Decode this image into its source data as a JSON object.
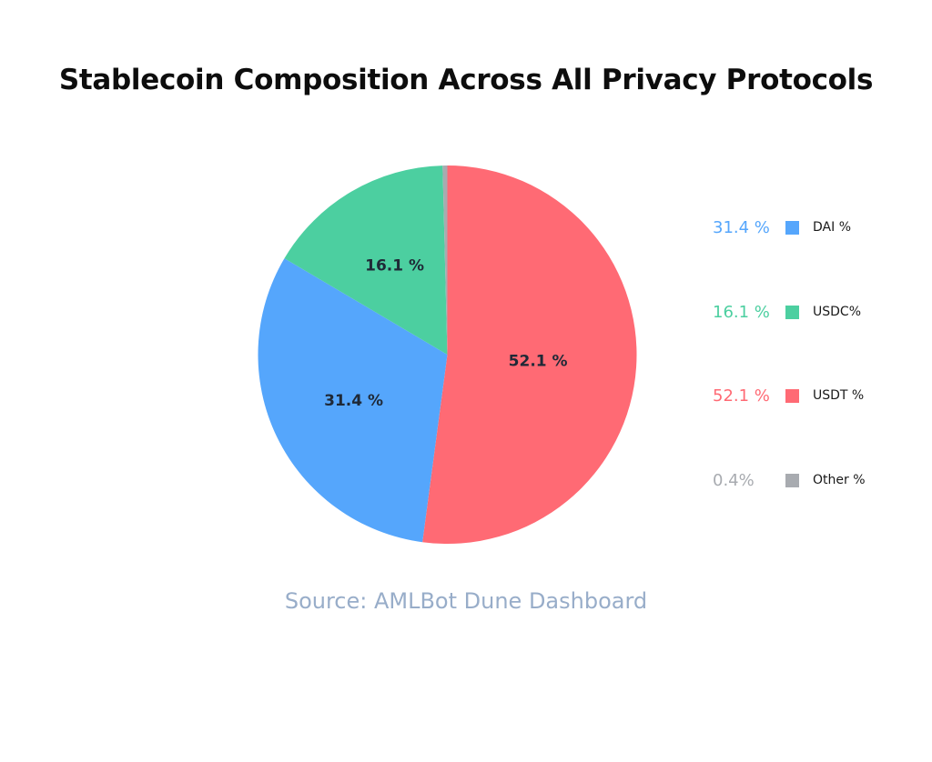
{
  "chart_data": {
    "type": "pie",
    "title": "Stablecoin Composition Across All Privacy Protocols",
    "source": "Source: AMLBot Dune Dashboard",
    "legend_position": "right",
    "slices": [
      {
        "name": "DAI %",
        "value": 31.4,
        "value_label": "31.4 %",
        "slice_label": "31.4 %",
        "color": "#55a6fc"
      },
      {
        "name": "USDC%",
        "value": 16.1,
        "value_label": "16.1 %",
        "slice_label": "16.1 %",
        "color": "#4ccfa0"
      },
      {
        "name": "USDT %",
        "value": 52.1,
        "value_label": "52.1 %",
        "slice_label": "52.1 %",
        "color": "#ff6a74"
      },
      {
        "name": "Other %",
        "value": 0.4,
        "value_label": "0.4%",
        "slice_label": "",
        "color": "#a8abb0"
      }
    ]
  }
}
